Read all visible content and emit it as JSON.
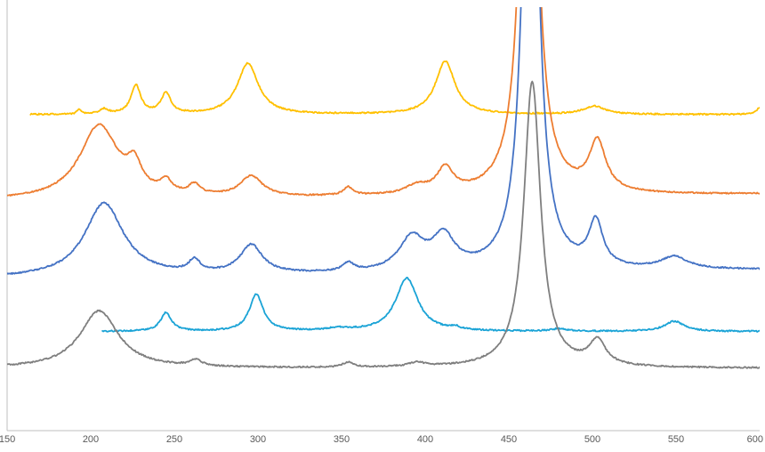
{
  "chart_data": {
    "type": "line",
    "title": "",
    "xlabel": "",
    "ylabel": "",
    "xlim": [
      150,
      600
    ],
    "ylim": [
      0,
      100
    ],
    "x_ticks": [
      150,
      200,
      250,
      300,
      350,
      400,
      450,
      500,
      550,
      600
    ],
    "x_tick_labels": [
      "150",
      "200",
      "250",
      "300",
      "350",
      "400",
      "450",
      "500",
      "550",
      "600"
    ],
    "grid": false,
    "legend": "none",
    "series": [
      {
        "color": "#ffc000",
        "baseline": 72,
        "x_range": [
          164,
          600
        ],
        "peaks": [
          [
            193,
            1,
            1.5
          ],
          [
            208,
            1.2,
            3
          ],
          [
            227,
            7,
            3.5
          ],
          [
            245,
            5,
            3.5
          ],
          [
            294,
            12.5,
            7.5
          ],
          [
            412,
            13,
            7
          ],
          [
            501,
            2,
            8
          ],
          [
            600,
            1.5,
            3
          ]
        ]
      },
      {
        "color": "#ed7d31",
        "baseline": 51,
        "x_range": [
          150,
          600
        ],
        "peaks": [
          [
            205,
            18,
            14
          ],
          [
            226,
            6,
            5
          ],
          [
            245,
            3,
            4
          ],
          [
            262,
            2.5,
            4
          ],
          [
            296,
            5,
            8
          ],
          [
            354,
            2,
            3.5
          ],
          [
            395,
            2,
            8
          ],
          [
            412,
            6,
            6
          ],
          [
            462,
            150,
            5
          ],
          [
            503,
            12,
            6
          ]
        ],
        "tail_rise": 1.5
      },
      {
        "color": "#4472c4",
        "baseline": 32,
        "x_range": [
          150,
          600
        ],
        "peaks": [
          [
            208,
            18,
            14
          ],
          [
            262,
            3,
            4
          ],
          [
            296,
            7,
            8
          ],
          [
            354,
            2,
            4
          ],
          [
            392,
            8,
            9
          ],
          [
            411,
            8,
            8
          ],
          [
            463,
            150,
            5
          ],
          [
            502,
            11,
            5
          ],
          [
            549,
            3,
            10
          ]
        ],
        "tail_rise": 2
      },
      {
        "color": "#1aa3d6",
        "baseline": 19,
        "x_range": [
          207,
          600
        ],
        "peaks": [
          [
            245,
            4.5,
            4
          ],
          [
            299,
            9,
            5
          ],
          [
            348,
            0.6,
            8
          ],
          [
            389,
            13,
            8
          ],
          [
            418,
            0.7,
            3
          ],
          [
            480,
            0.6,
            6
          ],
          [
            549,
            2.5,
            7
          ]
        ]
      },
      {
        "color": "#7f7f7f",
        "baseline": 10,
        "x_range": [
          150,
          600
        ],
        "peaks": [
          [
            205,
            14,
            14
          ],
          [
            263,
            1.5,
            4
          ],
          [
            354,
            1.2,
            4
          ],
          [
            395,
            1,
            6
          ],
          [
            464,
            70,
            6
          ],
          [
            503,
            6,
            6
          ]
        ]
      }
    ]
  }
}
